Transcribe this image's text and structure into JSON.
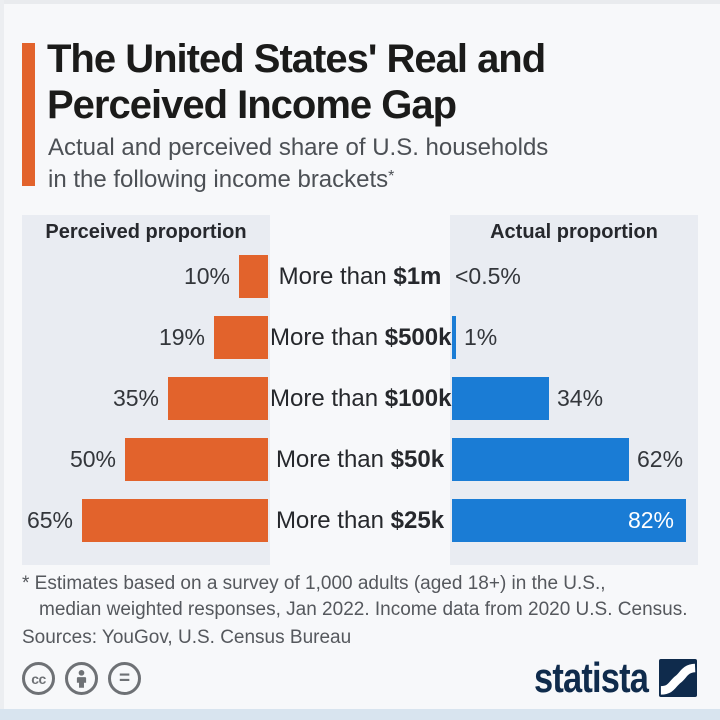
{
  "page": {
    "bg": "#f7f8fa",
    "bottom_strip_color": "#d8e4ef"
  },
  "header": {
    "accent_color": "#e2632c",
    "title_line1": "The United States' Real and",
    "title_line2": "Perceived Income Gap",
    "subtitle_line1": "Actual and perceived share of U.S. households",
    "subtitle_line2": "in the following income brackets",
    "subtitle_asterisk": "*"
  },
  "chart_data": {
    "type": "bar",
    "orientation": "diverging-horizontal",
    "left_header": "Perceived proportion",
    "right_header": "Actual proportion",
    "categories": [
      "More than $1m",
      "More than $500k",
      "More than $100k",
      "More than $50k",
      "More than $25k"
    ],
    "series": [
      {
        "name": "Perceived proportion",
        "values": [
          10,
          19,
          35,
          50,
          65
        ]
      },
      {
        "name": "Actual proportion",
        "values": [
          0.5,
          1,
          34,
          62,
          82
        ]
      }
    ],
    "rows": [
      {
        "prefix": "More than",
        "amount": "$1m",
        "perceived": 10,
        "perceived_label": "10%",
        "actual": 0.5,
        "actual_label": "<0.5%",
        "actual_bar": false,
        "actual_label_inside": false
      },
      {
        "prefix": "More than",
        "amount": "$500k",
        "perceived": 19,
        "perceived_label": "19%",
        "actual": 1,
        "actual_label": "1%",
        "actual_bar": true,
        "actual_label_inside": false
      },
      {
        "prefix": "More than",
        "amount": "$100k",
        "perceived": 35,
        "perceived_label": "35%",
        "actual": 34,
        "actual_label": "34%",
        "actual_bar": true,
        "actual_label_inside": false
      },
      {
        "prefix": "More than",
        "amount": "$50k",
        "perceived": 50,
        "perceived_label": "50%",
        "actual": 62,
        "actual_label": "62%",
        "actual_bar": true,
        "actual_label_inside": false
      },
      {
        "prefix": "More than",
        "amount": "$25k",
        "perceived": 65,
        "perceived_label": "65%",
        "actual": 82,
        "actual_label": "82%",
        "actual_bar": true,
        "actual_label_inside": true
      }
    ],
    "colors": {
      "perceived": "#e2632c",
      "actual": "#1a7cd5",
      "panel_bg": "#e9ecf2"
    },
    "xlim_percent": [
      0,
      87
    ],
    "grid": false,
    "legend_position": "panel-headers"
  },
  "footer": {
    "note_line1": "* Estimates based on a survey of 1,000 adults (aged 18+) in the U.S.,",
    "note_line2": "median weighted responses, Jan 2022. Income data from 2020 U.S. Census.",
    "sources": "Sources: YouGov, U.S. Census Bureau",
    "cc_label": "cc",
    "nd_label": "=",
    "brand": "statista",
    "brand_color": "#0f2b4c"
  }
}
